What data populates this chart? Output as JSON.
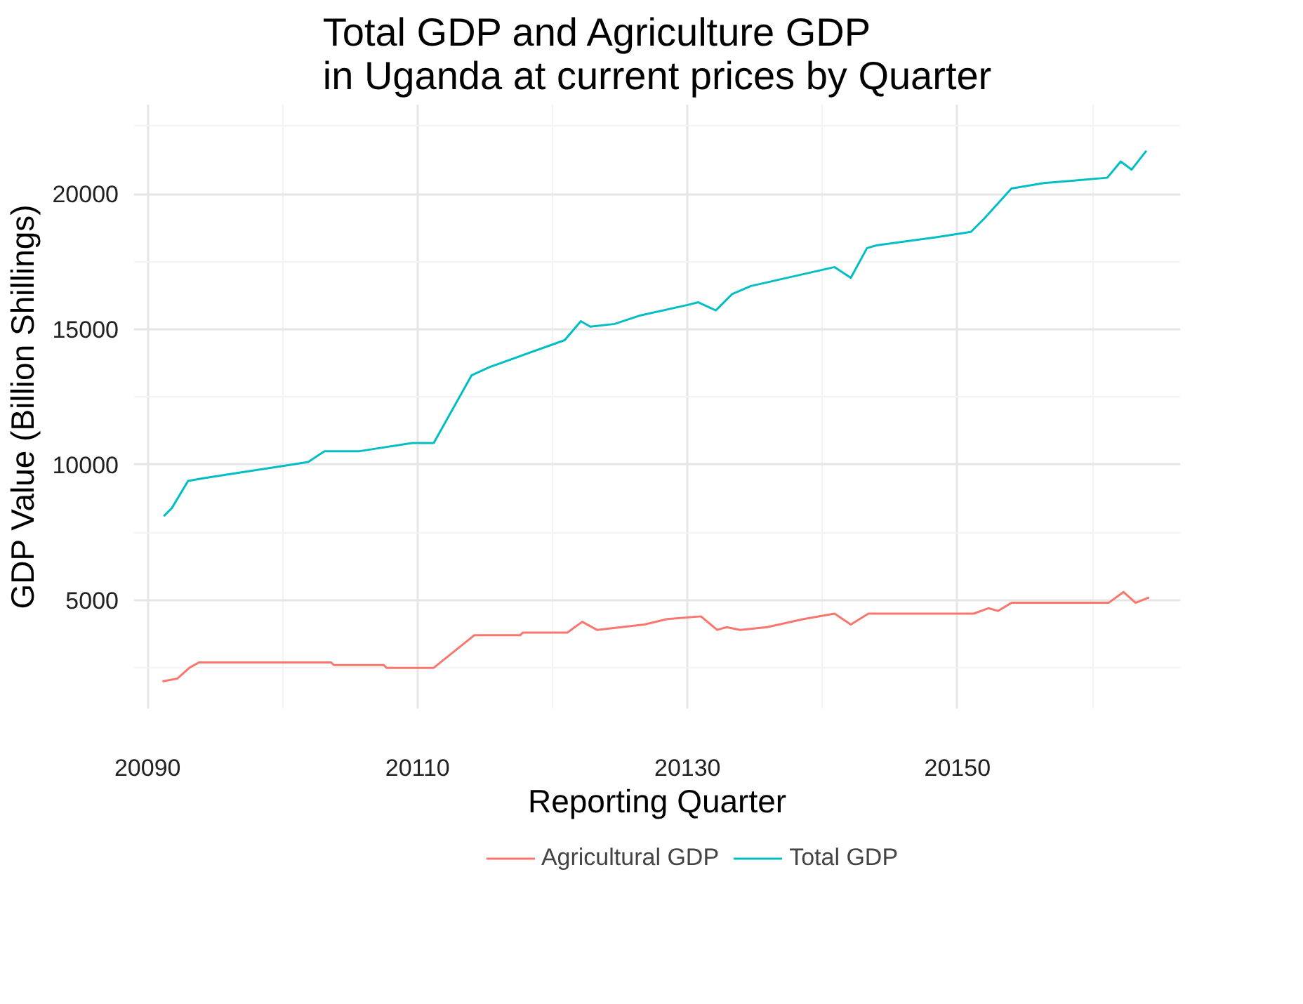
{
  "chart_data": {
    "type": "line",
    "title": "Total GDP and Agriculture GDP\nin Uganda at current prices by Quarter",
    "xlabel": "Reporting Quarter",
    "ylabel": "GDP Value (Billion Shillings)",
    "xlim": [
      20089,
      20166.5
    ],
    "ylim": [
      1000,
      23300
    ],
    "xticks": [
      20090,
      20110,
      20130,
      20150
    ],
    "yticks": [
      5000,
      10000,
      15000,
      20000
    ],
    "grid": true,
    "legend": "bottom",
    "line_style": "solid",
    "series": [
      {
        "name": "Agricultural GDP",
        "color": "#f8766d",
        "x": [
          20091.1,
          20092.2,
          20093.1,
          20093.8,
          20103.6,
          20103.8,
          20107.5,
          20107.7,
          20111.2,
          20114.2,
          20117.6,
          20117.8,
          20121.1,
          20122.2,
          20123.3,
          20125.1,
          20126.8,
          20128.5,
          20131.0,
          20132.2,
          20132.9,
          20133.9,
          20135.9,
          20138.6,
          20140.9,
          20142.1,
          20143.4,
          20151.2,
          20152.3,
          20153.0,
          20154.0,
          20161.2,
          20162.3,
          20163.2,
          20164.2
        ],
        "values": [
          2000,
          2100,
          2500,
          2700,
          2700,
          2600,
          2600,
          2500,
          2500,
          3700,
          3700,
          3800,
          3800,
          4200,
          3900,
          4000,
          4100,
          4300,
          4400,
          3900,
          4000,
          3900,
          4000,
          4300,
          4500,
          4100,
          4500,
          4500,
          4700,
          4600,
          4900,
          4900,
          5300,
          4900,
          5100
        ]
      },
      {
        "name": "Total GDP",
        "color": "#00bfc4",
        "x": [
          20091.2,
          20091.8,
          20093.0,
          20094.1,
          20096.7,
          20100.6,
          20101.9,
          20103.1,
          20105.7,
          20109.6,
          20111.2,
          20114.0,
          20115.3,
          20120.9,
          20122.1,
          20122.8,
          20124.6,
          20126.4,
          20130.0,
          20130.8,
          20132.1,
          20133.3,
          20134.7,
          20140.9,
          20142.1,
          20143.3,
          20144.0,
          20148.4,
          20151.0,
          20152.0,
          20154.0,
          20156.4,
          20161.1,
          20162.1,
          20162.9,
          20164.0
        ],
        "values": [
          8100,
          8400,
          9400,
          9500,
          9700,
          10000,
          10100,
          10500,
          10500,
          10800,
          10800,
          13300,
          13600,
          14600,
          15300,
          15100,
          15200,
          15500,
          15900,
          16000,
          15700,
          16300,
          16600,
          17300,
          16900,
          18000,
          18100,
          18400,
          18600,
          19100,
          20200,
          20400,
          20600,
          21200,
          20900,
          21600
        ]
      }
    ]
  }
}
